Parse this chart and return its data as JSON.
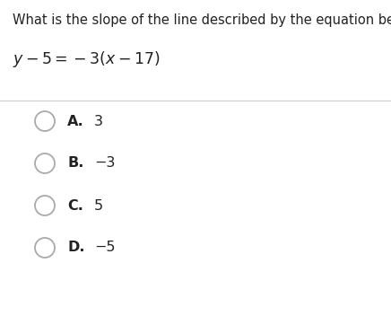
{
  "question": "What is the slope of the line described by the equation below?",
  "eq_parts": [
    {
      "text": "y",
      "italic": true
    },
    {
      "text": " – 5 = −3(",
      "italic": false
    },
    {
      "text": "x",
      "italic": true
    },
    {
      "text": " – 17)",
      "italic": false
    }
  ],
  "options": [
    {
      "label": "A.",
      "value": "3"
    },
    {
      "label": "B.",
      "value": "−3"
    },
    {
      "label": "C.",
      "value": "5"
    },
    {
      "label": "D.",
      "value": "−5"
    }
  ],
  "bg_color": "#ffffff",
  "text_color": "#222222",
  "question_fontsize": 10.5,
  "equation_fontsize": 11.5,
  "option_fontsize": 11.5,
  "circle_color": "#aaaaaa",
  "divider_color": "#cccccc"
}
